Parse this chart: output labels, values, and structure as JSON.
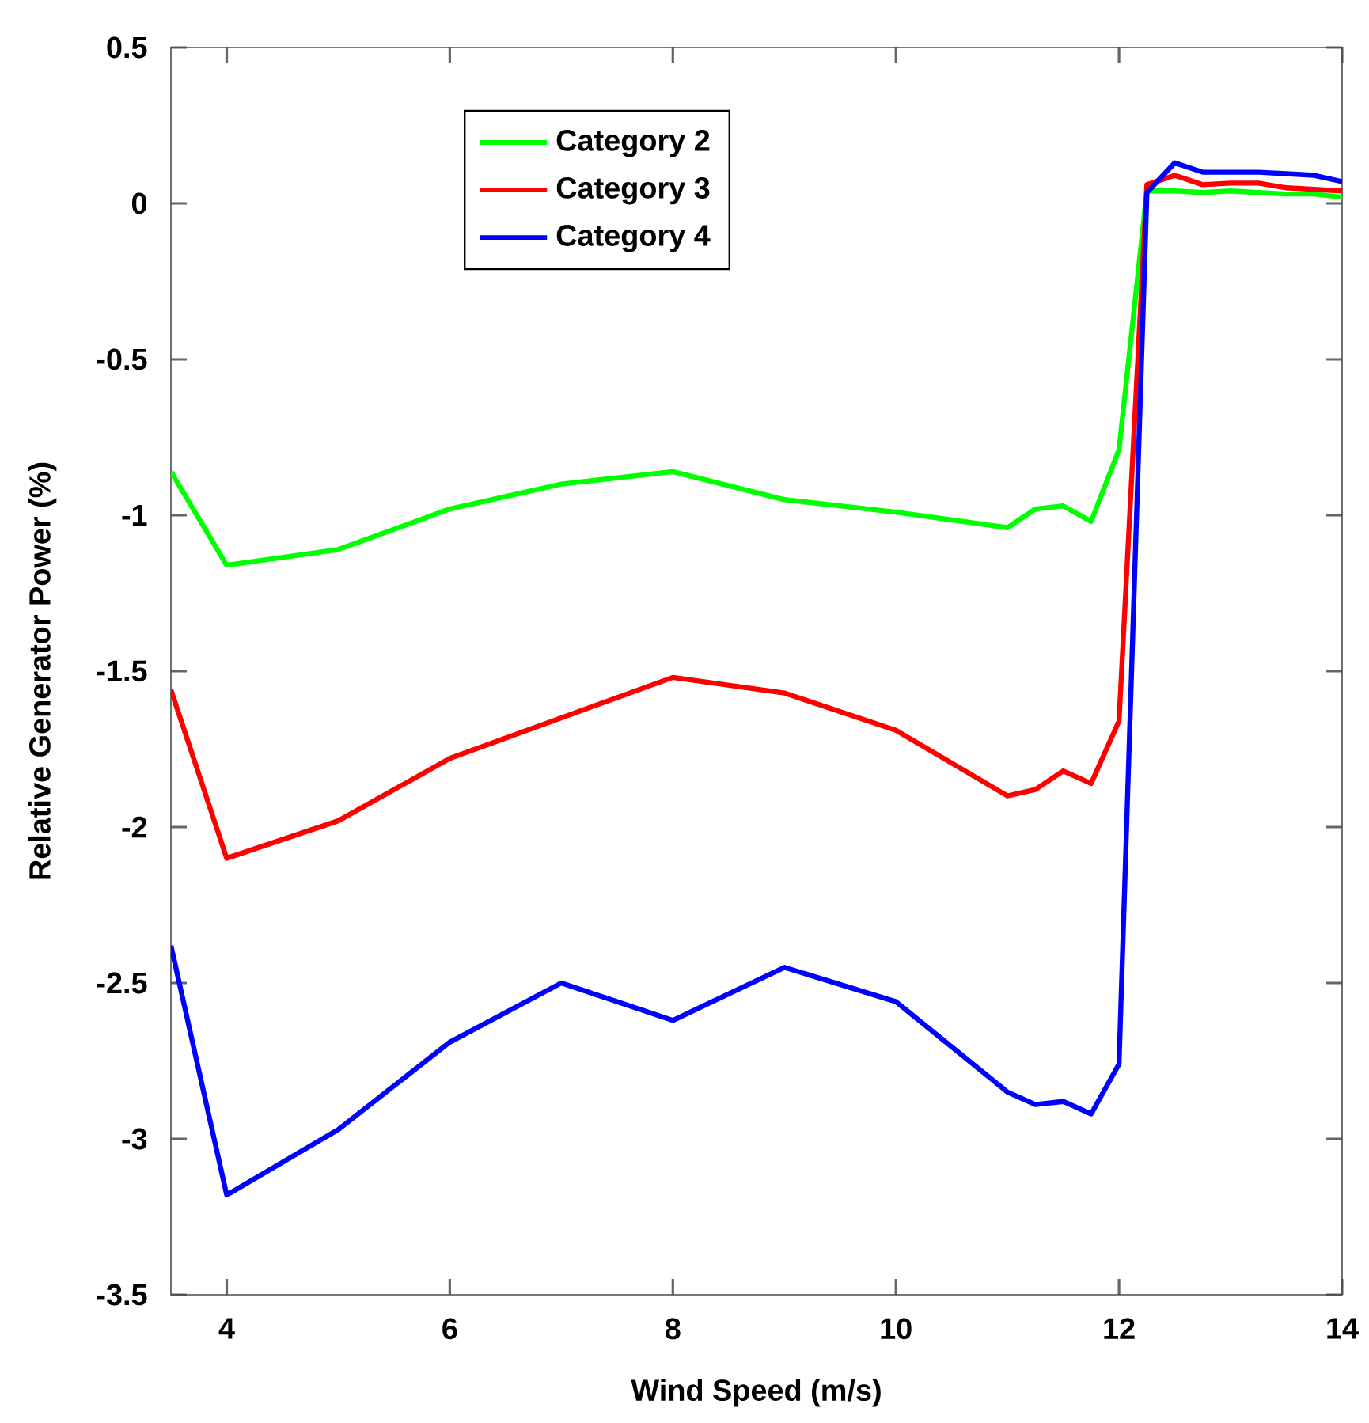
{
  "chart_data": {
    "type": "line",
    "xlabel": "Wind Speed (m/s)",
    "ylabel": "Relative Generator Power (%)",
    "x": [
      3.5,
      4,
      5,
      6,
      7,
      8,
      9,
      10,
      11,
      11.25,
      11.5,
      11.75,
      12,
      12.25,
      12.5,
      12.75,
      13,
      13.25,
      13.5,
      13.75,
      14
    ],
    "series": [
      {
        "name": "Category 2",
        "color": "#00ff00",
        "values": [
          -0.86,
          -1.16,
          -1.11,
          -0.98,
          -0.9,
          -0.86,
          -0.95,
          -0.99,
          -1.04,
          -0.98,
          -0.97,
          -1.02,
          -0.79,
          0.04,
          0.04,
          0.035,
          0.04,
          0.035,
          0.03,
          0.03,
          0.02
        ]
      },
      {
        "name": "Category 3",
        "color": "#ff0000",
        "values": [
          -1.56,
          -2.1,
          -1.98,
          -1.78,
          -1.65,
          -1.52,
          -1.57,
          -1.69,
          -1.9,
          -1.88,
          -1.82,
          -1.86,
          -1.66,
          0.06,
          0.09,
          0.06,
          0.065,
          0.065,
          0.05,
          0.045,
          0.04
        ]
      },
      {
        "name": "Category 4",
        "color": "#0000ff",
        "values": [
          -2.38,
          -3.18,
          -2.97,
          -2.69,
          -2.5,
          -2.62,
          -2.45,
          -2.56,
          -2.85,
          -2.89,
          -2.88,
          -2.92,
          -2.76,
          0.035,
          0.13,
          0.1,
          0.1,
          0.1,
          0.095,
          0.09,
          0.07
        ]
      }
    ],
    "xlim": [
      3.5,
      14
    ],
    "ylim": [
      -3.5,
      0.5
    ],
    "xticks": [
      4,
      6,
      8,
      10,
      12,
      14
    ],
    "yticks": [
      -3.5,
      -3,
      -2.5,
      -2,
      -1.5,
      -1,
      -0.5,
      0,
      0.5
    ],
    "grid": false,
    "legend": "top left",
    "marker": "none",
    "line_style": "solid"
  }
}
